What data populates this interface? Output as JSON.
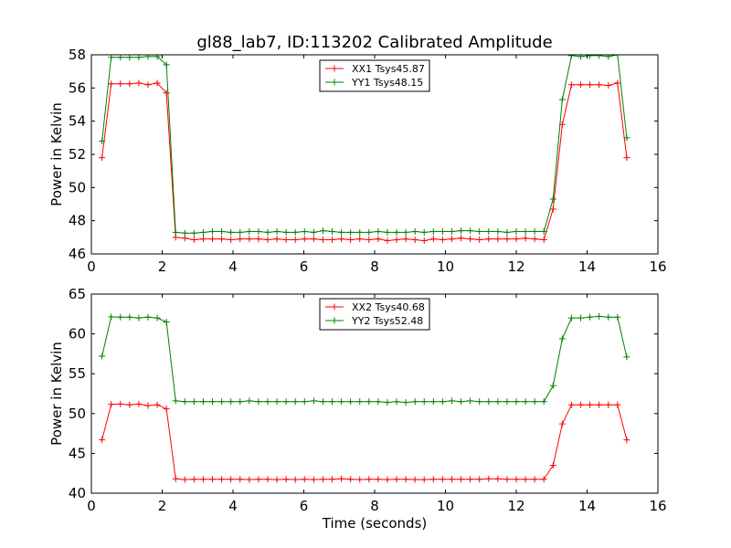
{
  "page": {
    "title": "gl88_lab7, ID:113202 Calibrated Amplitude"
  },
  "colors": {
    "XX": "#ff0000",
    "YY": "#008000",
    "axes": "#000000",
    "background": "#ffffff"
  },
  "chart_data": [
    {
      "type": "line",
      "title": "gl88_lab7, ID:113202 Calibrated Amplitude",
      "xlabel": "",
      "ylabel": "Power in Kelvin",
      "xlim": [
        0,
        16
      ],
      "ylim": [
        46,
        58
      ],
      "xticks": [
        0,
        2,
        4,
        6,
        8,
        10,
        12,
        14,
        16
      ],
      "yticks": [
        46,
        48,
        50,
        52,
        54,
        56,
        58
      ],
      "grid": false,
      "legend_position": "top-center",
      "x": [
        0.3,
        0.56,
        0.82,
        1.08,
        1.34,
        1.6,
        1.86,
        2.12,
        2.38,
        2.64,
        2.9,
        3.16,
        3.42,
        3.68,
        3.94,
        4.2,
        4.46,
        4.72,
        4.98,
        5.24,
        5.5,
        5.76,
        6.02,
        6.28,
        6.54,
        6.8,
        7.06,
        7.32,
        7.58,
        7.84,
        8.1,
        8.36,
        8.62,
        8.88,
        9.14,
        9.4,
        9.66,
        9.92,
        10.18,
        10.44,
        10.7,
        10.96,
        11.22,
        11.48,
        11.74,
        12.0,
        12.26,
        12.52,
        12.78,
        13.04,
        13.3,
        13.56,
        13.82,
        14.08,
        14.34,
        14.6,
        14.86,
        15.12
      ],
      "series": [
        {
          "name": "XX1 Tsys45.87",
          "color": "#ff0000",
          "values": [
            51.8,
            56.25,
            56.25,
            56.25,
            56.3,
            56.2,
            56.3,
            55.7,
            47.0,
            46.95,
            46.85,
            46.9,
            46.9,
            46.9,
            46.85,
            46.9,
            46.9,
            46.9,
            46.85,
            46.9,
            46.85,
            46.85,
            46.9,
            46.9,
            46.85,
            46.85,
            46.9,
            46.85,
            46.9,
            46.85,
            46.9,
            46.8,
            46.85,
            46.9,
            46.85,
            46.8,
            46.9,
            46.85,
            46.9,
            46.95,
            46.9,
            46.85,
            46.9,
            46.9,
            46.9,
            46.9,
            46.95,
            46.9,
            46.85,
            48.7,
            53.8,
            56.2,
            56.2,
            56.2,
            56.2,
            56.15,
            56.3,
            51.8
          ]
        },
        {
          "name": "YY1 Tsys48.15",
          "color": "#008000",
          "values": [
            52.8,
            57.85,
            57.85,
            57.85,
            57.85,
            57.9,
            57.9,
            57.4,
            47.3,
            47.25,
            47.25,
            47.3,
            47.35,
            47.35,
            47.3,
            47.3,
            47.35,
            47.35,
            47.3,
            47.35,
            47.3,
            47.3,
            47.35,
            47.3,
            47.4,
            47.35,
            47.3,
            47.3,
            47.3,
            47.3,
            47.35,
            47.3,
            47.3,
            47.3,
            47.35,
            47.3,
            47.35,
            47.35,
            47.35,
            47.4,
            47.4,
            47.35,
            47.35,
            47.35,
            47.3,
            47.35,
            47.35,
            47.35,
            47.35,
            49.3,
            55.3,
            57.95,
            57.9,
            57.95,
            57.95,
            57.9,
            58.0,
            53.0
          ]
        }
      ]
    },
    {
      "type": "line",
      "title": "",
      "xlabel": "Time (seconds)",
      "ylabel": "Power in Kelvin",
      "xlim": [
        0,
        16
      ],
      "ylim": [
        40,
        65
      ],
      "xticks": [
        0,
        2,
        4,
        6,
        8,
        10,
        12,
        14,
        16
      ],
      "yticks": [
        40,
        45,
        50,
        55,
        60,
        65
      ],
      "grid": false,
      "legend_position": "top-center",
      "x": [
        0.3,
        0.56,
        0.82,
        1.08,
        1.34,
        1.6,
        1.86,
        2.12,
        2.38,
        2.64,
        2.9,
        3.16,
        3.42,
        3.68,
        3.94,
        4.2,
        4.46,
        4.72,
        4.98,
        5.24,
        5.5,
        5.76,
        6.02,
        6.28,
        6.54,
        6.8,
        7.06,
        7.32,
        7.58,
        7.84,
        8.1,
        8.36,
        8.62,
        8.88,
        9.14,
        9.4,
        9.66,
        9.92,
        10.18,
        10.44,
        10.7,
        10.96,
        11.22,
        11.48,
        11.74,
        12.0,
        12.26,
        12.52,
        12.78,
        13.04,
        13.3,
        13.56,
        13.82,
        14.08,
        14.34,
        14.6,
        14.86,
        15.12
      ],
      "series": [
        {
          "name": "XX2 Tsys40.68",
          "color": "#ff0000",
          "values": [
            46.7,
            51.15,
            51.2,
            51.1,
            51.2,
            51.0,
            51.1,
            50.6,
            41.8,
            41.7,
            41.75,
            41.75,
            41.75,
            41.75,
            41.75,
            41.75,
            41.7,
            41.75,
            41.75,
            41.7,
            41.75,
            41.7,
            41.75,
            41.7,
            41.75,
            41.75,
            41.8,
            41.75,
            41.7,
            41.75,
            41.75,
            41.7,
            41.75,
            41.75,
            41.7,
            41.7,
            41.75,
            41.75,
            41.75,
            41.75,
            41.75,
            41.75,
            41.8,
            41.8,
            41.75,
            41.75,
            41.75,
            41.75,
            41.75,
            43.5,
            48.7,
            51.1,
            51.1,
            51.1,
            51.1,
            51.1,
            51.1,
            46.7
          ]
        },
        {
          "name": "YY2 Tsys52.48",
          "color": "#008000",
          "values": [
            57.2,
            62.15,
            62.1,
            62.1,
            62.0,
            62.1,
            62.0,
            61.5,
            51.6,
            51.5,
            51.5,
            51.5,
            51.5,
            51.5,
            51.5,
            51.5,
            51.6,
            51.5,
            51.5,
            51.5,
            51.5,
            51.5,
            51.5,
            51.6,
            51.5,
            51.5,
            51.5,
            51.5,
            51.5,
            51.5,
            51.5,
            51.4,
            51.5,
            51.4,
            51.5,
            51.5,
            51.5,
            51.5,
            51.6,
            51.5,
            51.6,
            51.5,
            51.5,
            51.5,
            51.5,
            51.5,
            51.5,
            51.5,
            51.5,
            53.5,
            59.4,
            62.0,
            62.0,
            62.1,
            62.2,
            62.1,
            62.1,
            57.1
          ]
        }
      ]
    }
  ]
}
